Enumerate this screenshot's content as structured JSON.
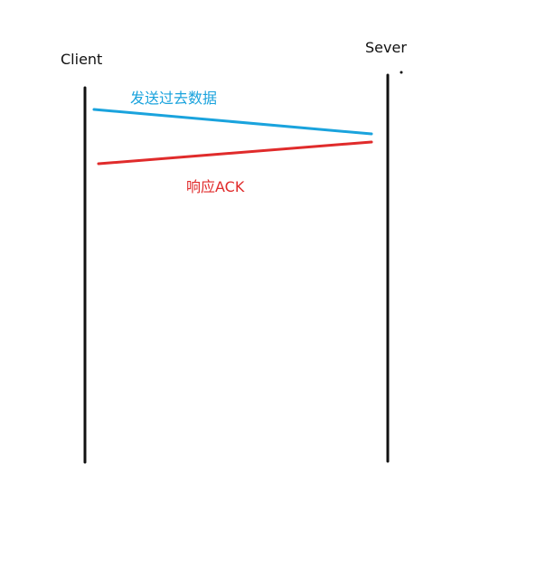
{
  "diagram": {
    "left_node_label": "Client",
    "right_node_label": "Sever",
    "message_send_label": "发送过去数据",
    "message_ack_label": "响应ACK"
  },
  "colors": {
    "lifeline": "#111111",
    "send_arrow": "#1aa3dd",
    "ack_arrow": "#e02b2b"
  }
}
